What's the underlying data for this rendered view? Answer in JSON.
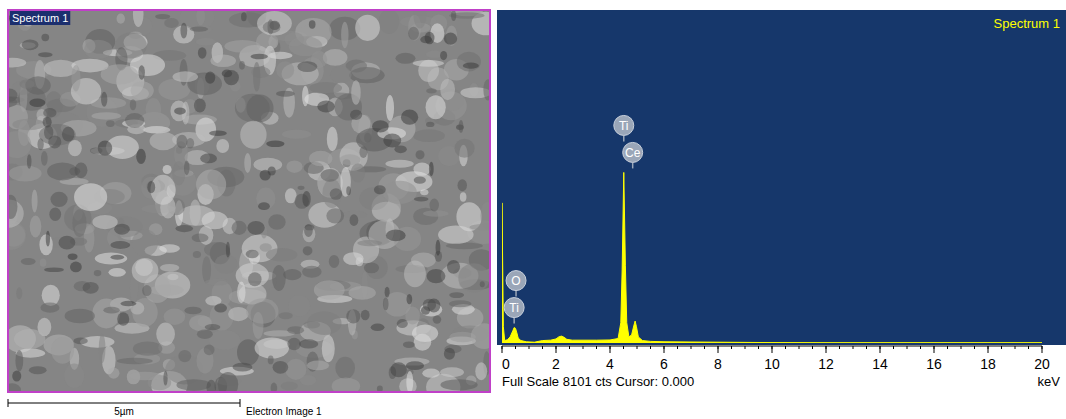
{
  "electron_image": {
    "label": "Spectrum 1",
    "scale_bar": "5µm",
    "caption": "Electron Image 1"
  },
  "chart_data": {
    "type": "area",
    "title": "Spectrum 1",
    "x_label": "keV",
    "footer": "Full Scale 8101 cts Cursor: 0.000",
    "x": [
      0,
      0.05,
      0.1,
      0.2,
      0.3,
      0.4,
      0.45,
      0.5,
      0.55,
      0.6,
      0.7,
      0.9,
      1.2,
      1.5,
      1.8,
      2.0,
      2.1,
      2.2,
      2.3,
      2.4,
      2.6,
      3.0,
      3.5,
      4.0,
      4.3,
      4.4,
      4.45,
      4.51,
      4.57,
      4.62,
      4.7,
      4.8,
      4.88,
      4.93,
      4.98,
      5.05,
      5.2,
      5.5,
      6.0,
      8,
      10,
      12,
      14,
      16,
      18,
      20
    ],
    "values": [
      3450,
      400,
      60,
      80,
      150,
      300,
      380,
      360,
      250,
      120,
      60,
      30,
      20,
      60,
      70,
      100,
      150,
      170,
      140,
      90,
      70,
      70,
      70,
      75,
      110,
      500,
      1800,
      4200,
      1900,
      500,
      150,
      200,
      420,
      540,
      400,
      150,
      60,
      40,
      30,
      20,
      10,
      5,
      5,
      5,
      5,
      5
    ],
    "color": "#ffff00",
    "xlim": [
      0,
      20
    ],
    "xticks": [
      0,
      2,
      4,
      6,
      8,
      10,
      12,
      14,
      16,
      18,
      20
    ],
    "ylim": [
      0,
      8101
    ],
    "tick_labels": "x",
    "grid": false,
    "annotations": [
      {
        "text": "Ti",
        "x": 4.51
      },
      {
        "text": "Ce",
        "x": 4.84
      },
      {
        "text": "O",
        "x": 0.52
      },
      {
        "text": "Ti",
        "x": 0.45
      }
    ]
  }
}
